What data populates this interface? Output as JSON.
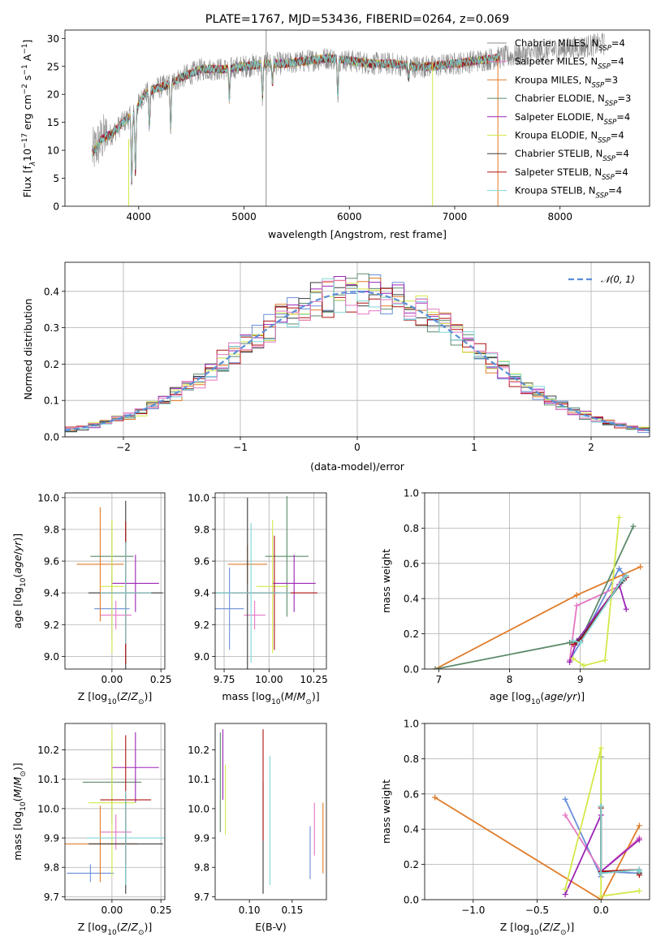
{
  "colors": [
    "#8c8c8c",
    "#e377c2",
    "#e07b28",
    "#5c8a6a",
    "#9b25b5",
    "#d4e84a",
    "#3a3a3a",
    "#b01010",
    "#7fd6d6"
  ],
  "chart_data": [
    {
      "id": "spectrum",
      "type": "line",
      "title": "PLATE=1767, MJD=53436, FIBERID=0264, z=0.069",
      "xlabel": "wavelength [Angstrom, rest frame]",
      "ylabel": "Flux [f$_\\lambda$10$^{-17}$ erg cm$^{-2}$ s$^{-1}$ A$^{-1}$]",
      "ylabel_parts": [
        "Flux [f",
        "λ",
        "10",
        "−17",
        " erg cm",
        "−2",
        " s",
        "−1",
        " A",
        "−1",
        "]"
      ],
      "xlim": [
        3300,
        8850
      ],
      "ylim": [
        0,
        31.5
      ],
      "xticks": [
        4000,
        5000,
        6000,
        7000,
        8000
      ],
      "yticks": [
        0,
        5,
        10,
        15,
        20,
        25,
        30
      ],
      "continuum": {
        "x": [
          3560,
          3650,
          3750,
          3850,
          3950,
          4050,
          4150,
          4250,
          4400,
          4600,
          4800,
          5000,
          5200,
          5400,
          5600,
          5800,
          6000,
          6200,
          6400,
          6600,
          6800,
          7000,
          7200,
          7400
        ],
        "y": [
          9.5,
          12.0,
          13.0,
          15.0,
          16.5,
          20.0,
          21.0,
          21.5,
          23.0,
          24.5,
          24.5,
          25.0,
          25.5,
          25.5,
          26.0,
          26.5,
          26.0,
          25.5,
          25.5,
          25.0,
          25.0,
          25.5,
          26.0,
          26.5
        ]
      },
      "observed_extension": {
        "x": [
          7400,
          7600,
          7800,
          8000,
          8200,
          8400
        ],
        "y": [
          26.5,
          27.0,
          27.5,
          28.0,
          28.5,
          29.0
        ]
      },
      "absorption_lines": [
        {
          "x": 3934,
          "y": 4.0
        },
        {
          "x": 3969,
          "y": 6.0
        },
        {
          "x": 4102,
          "y": 14.0
        },
        {
          "x": 4304,
          "y": 14.0
        },
        {
          "x": 4861,
          "y": 19.0
        },
        {
          "x": 5175,
          "y": 19.5
        },
        {
          "x": 5270,
          "y": 22.0
        },
        {
          "x": 5890,
          "y": 20.0
        },
        {
          "x": 6563,
          "y": 23.0
        }
      ],
      "spikes": [
        {
          "x": 5210,
          "from": 0,
          "to": 31.5,
          "color_index": 0
        },
        {
          "x": 6790,
          "from": 0,
          "to": 25.5,
          "color_index": 5
        },
        {
          "x": 7410,
          "from": 0,
          "to": 26.5,
          "color_index": 2
        },
        {
          "x": 3905,
          "from": 0,
          "to": 12.0,
          "color_index": 5
        }
      ],
      "legend": {
        "position": "upper right",
        "entries": [
          {
            "prefix": "Chabrier MILES, N",
            "sub": "SSP",
            "suffix": "=4"
          },
          {
            "prefix": "Salpeter MILES, N",
            "sub": "SSP",
            "suffix": "=4"
          },
          {
            "prefix": "Kroupa MILES, N",
            "sub": "SSP",
            "suffix": "=3"
          },
          {
            "prefix": "Chabrier ELODIE, N",
            "sub": "SSP",
            "suffix": "=3"
          },
          {
            "prefix": "Salpeter ELODIE, N",
            "sub": "SSP",
            "suffix": "=4"
          },
          {
            "prefix": "Kroupa ELODIE, N",
            "sub": "SSP",
            "suffix": "=4"
          },
          {
            "prefix": "Chabrier STELIB, N",
            "sub": "SSP",
            "suffix": "=4"
          },
          {
            "prefix": "Salpeter STELIB, N",
            "sub": "SSP",
            "suffix": "=4"
          },
          {
            "prefix": "Kroupa STELIB, N",
            "sub": "SSP",
            "suffix": "=4"
          }
        ]
      }
    },
    {
      "id": "residuals",
      "type": "histogram",
      "xlabel": "(data-model)/error",
      "ylabel": "Normed distribution",
      "xlim": [
        -2.5,
        2.5
      ],
      "ylim": [
        0,
        0.48
      ],
      "xticks": [
        -2,
        -1,
        0,
        1,
        2
      ],
      "xtick_labels": [
        "−2",
        "−1",
        "0",
        "1",
        "2"
      ],
      "yticks": [
        0,
        0.1,
        0.2,
        0.3,
        0.4
      ],
      "ytick_labels": [
        "0.0",
        "0.1",
        "0.2",
        "0.3",
        "0.4"
      ],
      "grid": true,
      "bin_edges_range": [
        -2.5,
        2.5
      ],
      "n_bins": 50,
      "gaussian": {
        "mean": 0,
        "sigma": 1,
        "label": "𝒩(0, 1)",
        "color": "#5b8fd6"
      },
      "legend_position": "upper right"
    },
    {
      "id": "age-vs-Z",
      "type": "errorbar",
      "xlabel_parts": [
        "Z [log",
        "10",
        "(",
        "Z",
        "/",
        "Z",
        "⊙",
        ")]"
      ],
      "ylabel_parts": [
        "age  [log",
        "10",
        "(",
        "age",
        "/",
        "yr",
        ")]"
      ],
      "xlim": [
        -0.24,
        0.27
      ],
      "ylim": [
        8.92,
        10.03
      ],
      "xticks": [
        0.0,
        0.25
      ],
      "xtick_labels": [
        "0.00",
        "0.25"
      ],
      "yticks": [
        9.0,
        9.2,
        9.4,
        9.6,
        9.8,
        10.0
      ],
      "ytick_labels": [
        "9.0",
        "9.2",
        "9.4",
        "9.6",
        "9.8",
        "10.0"
      ],
      "grid": true,
      "points": [
        {
          "x": 0.0,
          "y": 9.3,
          "xerr": 0.09,
          "yerr": 0.2,
          "c": 9
        },
        {
          "x": 0.02,
          "y": 9.26,
          "xerr": 0.08,
          "yerr": 0.09,
          "c": 1
        },
        {
          "x": -0.06,
          "y": 9.58,
          "xerr": 0.12,
          "yerr": 0.36,
          "c": 2
        },
        {
          "x": 0.0,
          "y": 9.63,
          "xerr": 0.11,
          "yerr": 0.22,
          "c": 3
        },
        {
          "x": 0.12,
          "y": 9.46,
          "xerr": 0.12,
          "yerr": 0.18,
          "c": 4
        },
        {
          "x": 0.0,
          "y": 9.44,
          "xerr": 0.06,
          "yerr": 0.42,
          "c": 5
        },
        {
          "x": 0.07,
          "y": 9.4,
          "xerr": 0.19,
          "yerr": 0.58,
          "c": 6
        },
        {
          "x": 0.07,
          "y": 9.4,
          "xerr": 0.12,
          "yerr": 0.45,
          "c": 7
        },
        {
          "x": 0.07,
          "y": 9.4,
          "xerr": 0.13,
          "yerr": 0.32,
          "c": 8
        }
      ]
    },
    {
      "id": "age-vs-mass",
      "type": "errorbar",
      "xlabel_parts": [
        "mass [log",
        "10",
        "(",
        "M",
        "/",
        "M",
        "⊙",
        ")]"
      ],
      "xlim": [
        9.7,
        10.32
      ],
      "ylim": [
        8.92,
        10.03
      ],
      "xticks": [
        9.75,
        10.0,
        10.25
      ],
      "xtick_labels": [
        "9.75",
        "10.00",
        "10.25"
      ],
      "yticks": [
        9.0,
        9.2,
        9.4,
        9.6,
        9.8,
        10.0
      ],
      "ytick_labels": [
        "9.0",
        "9.2",
        "9.4",
        "9.6",
        "9.8",
        "10.0"
      ],
      "grid": true,
      "points": [
        {
          "x": 9.78,
          "y": 9.3,
          "xerr": 0.08,
          "yerr": 0.26,
          "c": 9
        },
        {
          "x": 9.92,
          "y": 9.26,
          "xerr": 0.06,
          "yerr": 0.09,
          "c": 1
        },
        {
          "x": 9.88,
          "y": 9.58,
          "xerr": 0.11,
          "yerr": 0.12,
          "c": 2
        },
        {
          "x": 10.1,
          "y": 9.63,
          "xerr": 0.12,
          "yerr": 0.38,
          "c": 3
        },
        {
          "x": 10.14,
          "y": 9.46,
          "xerr": 0.12,
          "yerr": 0.18,
          "c": 4
        },
        {
          "x": 10.02,
          "y": 9.44,
          "xerr": 0.09,
          "yerr": 0.42,
          "c": 5
        },
        {
          "x": 9.88,
          "y": 9.4,
          "xerr": 0.18,
          "yerr": 0.6,
          "c": 6
        },
        {
          "x": 10.03,
          "y": 9.4,
          "xerr": 0.24,
          "yerr": 0.36,
          "c": 7
        },
        {
          "x": 9.9,
          "y": 9.4,
          "xerr": 0.22,
          "yerr": 0.44,
          "c": 8
        }
      ]
    },
    {
      "id": "weight-vs-age",
      "type": "line",
      "xlabel_parts": [
        "age  [log",
        "10",
        "(",
        "age",
        "/",
        "yr",
        ")]"
      ],
      "ylabel": "mass weight",
      "xlim": [
        6.8,
        9.98
      ],
      "ylim": [
        0,
        1.0
      ],
      "xticks": [
        7,
        8,
        9
      ],
      "xtick_labels": [
        "7",
        "8",
        "9"
      ],
      "yticks": [
        0,
        0.2,
        0.4,
        0.6,
        0.8,
        1.0
      ],
      "ytick_labels": [
        "0.0",
        "0.2",
        "0.4",
        "0.6",
        "0.8",
        "1.0"
      ],
      "grid": true,
      "series": [
        {
          "c": 9,
          "x": [
            8.85,
            9.0,
            9.55,
            9.65
          ],
          "y": [
            0.05,
            0.15,
            0.57,
            0.52
          ]
        },
        {
          "c": 1,
          "x": [
            8.85,
            8.95,
            9.55,
            9.62
          ],
          "y": [
            0.05,
            0.36,
            0.47,
            0.53
          ]
        },
        {
          "c": 2,
          "x": [
            6.95,
            8.95,
            9.85
          ],
          "y": [
            0.0,
            0.42,
            0.58
          ]
        },
        {
          "c": 3,
          "x": [
            6.95,
            8.85,
            9.0,
            9.75
          ],
          "y": [
            0.0,
            0.15,
            0.16,
            0.81
          ]
        },
        {
          "c": 4,
          "x": [
            8.85,
            8.95,
            9.55,
            9.65
          ],
          "y": [
            0.04,
            0.16,
            0.48,
            0.34
          ]
        },
        {
          "c": 5,
          "x": [
            8.9,
            9.05,
            9.35,
            9.55
          ],
          "y": [
            0.06,
            0.02,
            0.05,
            0.86
          ]
        },
        {
          "c": 6,
          "x": [
            8.95,
            9.0,
            9.6,
            9.65
          ],
          "y": [
            0.15,
            0.17,
            0.5,
            0.53
          ]
        },
        {
          "c": 7,
          "x": [
            8.9,
            9.0,
            9.6,
            9.65
          ],
          "y": [
            0.14,
            0.16,
            0.51,
            0.52
          ]
        },
        {
          "c": 8,
          "x": [
            8.9,
            9.0,
            9.6,
            9.65
          ],
          "y": [
            0.16,
            0.15,
            0.51,
            0.53
          ]
        }
      ]
    },
    {
      "id": "mass-vs-Z",
      "type": "errorbar",
      "xlabel_parts": [
        "Z [log",
        "10",
        "(",
        "Z",
        "/",
        "Z",
        "⊙",
        ")]"
      ],
      "ylabel_parts": [
        "mass [log",
        "10",
        "(",
        "M",
        "/",
        "M",
        "⊙",
        ")]"
      ],
      "xlim": [
        -0.24,
        0.27
      ],
      "ylim": [
        9.69,
        10.29
      ],
      "xticks": [
        0.0,
        0.25
      ],
      "xtick_labels": [
        "0.00",
        "0.25"
      ],
      "yticks": [
        9.7,
        9.8,
        9.9,
        10.0,
        10.1,
        10.2
      ],
      "ytick_labels": [
        "9.7",
        "9.8",
        "9.9",
        "10.0",
        "10.1",
        "10.2"
      ],
      "grid": true,
      "points": [
        {
          "x": -0.11,
          "y": 9.78,
          "xerr": 0.12,
          "yerr": 0.03,
          "c": 9
        },
        {
          "x": 0.02,
          "y": 9.92,
          "xerr": 0.08,
          "yerr": 0.06,
          "c": 1
        },
        {
          "x": -0.06,
          "y": 9.88,
          "xerr": 0.19,
          "yerr": 0.13,
          "c": 2
        },
        {
          "x": 0.0,
          "y": 10.09,
          "xerr": 0.15,
          "yerr": 0.14,
          "c": 3
        },
        {
          "x": 0.12,
          "y": 10.14,
          "xerr": 0.12,
          "yerr": 0.12,
          "c": 4
        },
        {
          "x": 0.0,
          "y": 10.02,
          "xerr": 0.12,
          "yerr": 0.25,
          "c": 5
        },
        {
          "x": 0.07,
          "y": 9.88,
          "xerr": 0.19,
          "yerr": 0.17,
          "c": 6
        },
        {
          "x": 0.07,
          "y": 10.03,
          "xerr": 0.13,
          "yerr": 0.22,
          "c": 7
        },
        {
          "x": 0.07,
          "y": 9.9,
          "xerr": 0.2,
          "yerr": 0.16,
          "c": 8
        }
      ]
    },
    {
      "id": "mass-vs-ebv",
      "type": "errorbar",
      "xlabel": "E(B-V)",
      "xlim": [
        0.06,
        0.19
      ],
      "ylim": [
        9.69,
        10.29
      ],
      "xticks": [
        0.1,
        0.15
      ],
      "xtick_labels": [
        "0.10",
        "0.15"
      ],
      "yticks": [
        9.7,
        9.8,
        9.9,
        10.0,
        10.1,
        10.2
      ],
      "ytick_labels": [
        "9.7",
        "9.8",
        "9.9",
        "10.0",
        "10.1",
        "10.2"
      ],
      "grid": false,
      "points": [
        {
          "x": 0.171,
          "y": 9.85,
          "xerr": 0,
          "yerr": 0.09,
          "c": 9
        },
        {
          "x": 0.176,
          "y": 9.93,
          "xerr": 0,
          "yerr": 0.09,
          "c": 1
        },
        {
          "x": 0.186,
          "y": 9.9,
          "xerr": 0,
          "yerr": 0.12,
          "c": 2
        },
        {
          "x": 0.066,
          "y": 10.09,
          "xerr": 0,
          "yerr": 0.17,
          "c": 3
        },
        {
          "x": 0.069,
          "y": 10.15,
          "xerr": 0,
          "yerr": 0.12,
          "c": 4
        },
        {
          "x": 0.072,
          "y": 10.03,
          "xerr": 0,
          "yerr": 0.12,
          "c": 5
        },
        {
          "x": 0.116,
          "y": 9.9,
          "xerr": 0,
          "yerr": 0.19,
          "c": 6
        },
        {
          "x": 0.116,
          "y": 10.08,
          "xerr": 0,
          "yerr": 0.19,
          "c": 7
        },
        {
          "x": 0.124,
          "y": 9.96,
          "xerr": 0,
          "yerr": 0.22,
          "c": 8
        }
      ]
    },
    {
      "id": "weight-vs-Z",
      "type": "line",
      "xlabel_parts": [
        "Z [log",
        "10",
        "(",
        "Z",
        "/",
        "Z",
        "⊙",
        ")]"
      ],
      "ylabel": "mass weight",
      "xlim": [
        -1.38,
        0.38
      ],
      "ylim": [
        0,
        1.0
      ],
      "xticks": [
        -1.0,
        -0.5,
        0.0
      ],
      "xtick_labels": [
        "−1.0",
        "−0.5",
        "0.0"
      ],
      "yticks": [
        0,
        0.2,
        0.4,
        0.6,
        0.8,
        1.0
      ],
      "ytick_labels": [
        "0.0",
        "0.2",
        "0.4",
        "0.6",
        "0.8",
        "1.0"
      ],
      "grid": true,
      "series": [
        {
          "c": 9,
          "x": [
            -0.28,
            0.0,
            0.0,
            0.3
          ],
          "y": [
            0.57,
            0.13,
            0.16,
            0.15
          ]
        },
        {
          "c": 1,
          "x": [
            -0.28,
            0.0,
            0.3,
            0.3
          ],
          "y": [
            0.48,
            0.16,
            0.35,
            0.35
          ]
        },
        {
          "c": 2,
          "x": [
            -1.3,
            0.0,
            0.3
          ],
          "y": [
            0.58,
            0.0,
            0.42
          ]
        },
        {
          "c": 3,
          "x": [
            0.0,
            0.0,
            0.3,
            0.3
          ],
          "y": [
            0.81,
            0.16,
            0.17,
            0.15
          ]
        },
        {
          "c": 4,
          "x": [
            -0.28,
            0.0,
            0.0,
            0.3
          ],
          "y": [
            0.03,
            0.48,
            0.16,
            0.34
          ]
        },
        {
          "c": 5,
          "x": [
            -0.28,
            0.0,
            0.0,
            0.3
          ],
          "y": [
            0.06,
            0.86,
            0.02,
            0.05
          ]
        },
        {
          "c": 6,
          "x": [
            0.0,
            0.0,
            0.3,
            0.3
          ],
          "y": [
            0.53,
            0.15,
            0.17,
            0.15
          ]
        },
        {
          "c": 7,
          "x": [
            0.0,
            0.0,
            0.3,
            0.3
          ],
          "y": [
            0.52,
            0.16,
            0.17,
            0.14
          ]
        },
        {
          "c": 8,
          "x": [
            0.0,
            0.0,
            0.3,
            0.3
          ],
          "y": [
            0.53,
            0.15,
            0.17,
            0.16
          ]
        }
      ]
    }
  ]
}
